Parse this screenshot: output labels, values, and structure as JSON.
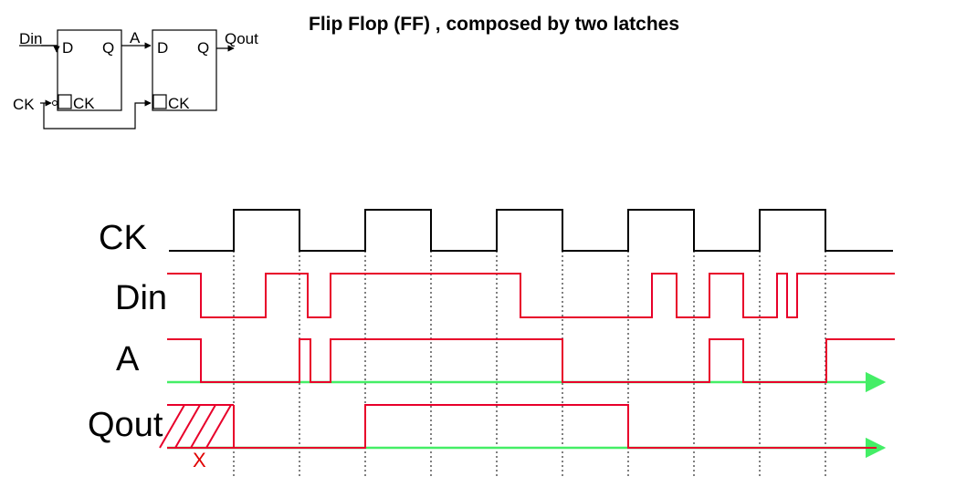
{
  "title": "Flip Flop (FF) , composed by two latches",
  "schematic": {
    "latch1": {
      "d_label": "D",
      "q_label": "Q",
      "ck_label": "CK"
    },
    "latch2": {
      "d_label": "D",
      "q_label": "Q",
      "ck_label": "CK"
    },
    "input_din": "Din",
    "input_ck": "CK",
    "node_a": "A",
    "output_qout": "Qout"
  },
  "timing": {
    "signals": [
      {
        "name": "CK",
        "color": "#000000"
      },
      {
        "name": "Din",
        "color": "#e8002a"
      },
      {
        "name": "A",
        "color": "#e8002a"
      },
      {
        "name": "Qout",
        "color": "#e8002a"
      }
    ],
    "unknown_marker": "X",
    "colors": {
      "clock": "#000000",
      "signal": "#e8002a",
      "time_axis": "#44ee66",
      "guide": "#000000"
    }
  }
}
